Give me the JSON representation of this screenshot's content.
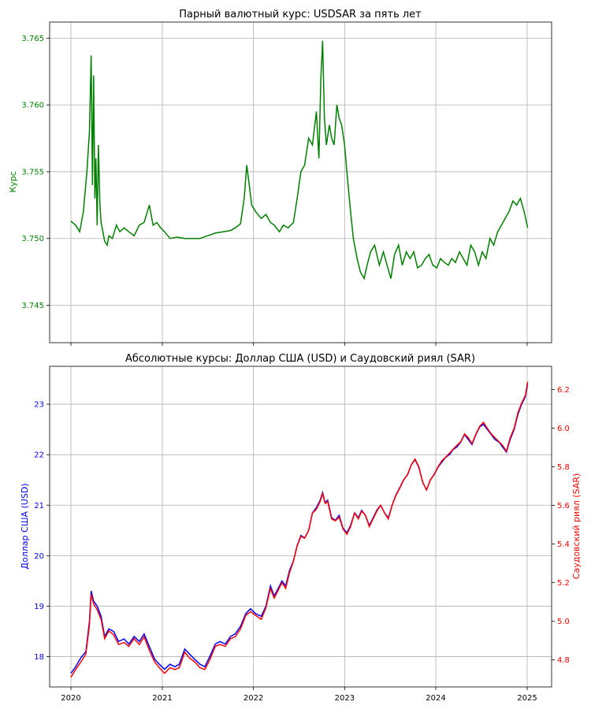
{
  "chart_data": [
    {
      "type": "line",
      "title": "Парный валютный курс: USDSAR за пять лет",
      "ylabel": "Курс",
      "xlabel": "",
      "grid": true,
      "ylim": [
        3.7422,
        3.7662
      ],
      "y_ticks": [
        3.745,
        3.75,
        3.755,
        3.76,
        3.765
      ],
      "y_tick_labels": [
        "3.745",
        "3.750",
        "3.755",
        "3.760",
        "3.765"
      ],
      "x_ticks": [
        "2020",
        "2021",
        "2022",
        "2023",
        "2024",
        "2025"
      ],
      "colors": {
        "series": "#008000",
        "axis_labels": "#008000"
      },
      "series": [
        {
          "x": [
            "2020-01-01",
            "2020-01-20",
            "2020-02-05",
            "2020-02-20",
            "2020-03-05",
            "2020-03-15",
            "2020-03-22",
            "2020-03-27",
            "2020-04-01",
            "2020-04-06",
            "2020-04-10",
            "2020-04-15",
            "2020-04-20",
            "2020-04-26",
            "2020-05-01",
            "2020-05-08",
            "2020-05-15",
            "2020-05-25",
            "2020-06-01",
            "2020-06-15",
            "2020-07-01",
            "2020-07-15",
            "2020-08-01",
            "2020-08-20",
            "2020-09-10",
            "2020-10-01",
            "2020-10-20",
            "2020-11-10",
            "2020-11-25",
            "2020-12-10",
            "2020-12-25",
            "2021-01-10",
            "2021-02-01",
            "2021-03-01",
            "2021-04-01",
            "2021-05-01",
            "2021-06-01",
            "2021-07-01",
            "2021-08-01",
            "2021-09-01",
            "2021-10-01",
            "2021-10-20",
            "2021-11-10",
            "2021-11-25",
            "2021-12-05",
            "2021-12-15",
            "2021-12-25",
            "2022-01-10",
            "2022-02-01",
            "2022-02-20",
            "2022-03-10",
            "2022-03-25",
            "2022-04-15",
            "2022-05-01",
            "2022-05-20",
            "2022-06-10",
            "2022-06-25",
            "2022-07-10",
            "2022-07-25",
            "2022-08-10",
            "2022-08-25",
            "2022-09-10",
            "2022-09-20",
            "2022-09-28",
            "2022-10-05",
            "2022-10-12",
            "2022-10-20",
            "2022-11-01",
            "2022-11-10",
            "2022-11-20",
            "2022-12-01",
            "2022-12-10",
            "2022-12-20",
            "2023-01-01",
            "2023-01-10",
            "2023-01-25",
            "2023-02-05",
            "2023-02-20",
            "2023-03-05",
            "2023-03-20",
            "2023-04-01",
            "2023-04-15",
            "2023-05-01",
            "2023-05-20",
            "2023-06-05",
            "2023-06-20",
            "2023-07-05",
            "2023-07-20",
            "2023-08-05",
            "2023-08-20",
            "2023-09-05",
            "2023-09-20",
            "2023-10-05",
            "2023-10-20",
            "2023-11-05",
            "2023-11-20",
            "2023-12-05",
            "2023-12-20",
            "2024-01-05",
            "2024-01-20",
            "2024-02-05",
            "2024-02-20",
            "2024-03-05",
            "2024-03-20",
            "2024-04-05",
            "2024-04-20",
            "2024-05-05",
            "2024-05-20",
            "2024-06-05",
            "2024-06-20",
            "2024-07-05",
            "2024-07-20",
            "2024-08-05",
            "2024-08-20",
            "2024-09-05",
            "2024-09-20",
            "2024-10-05",
            "2024-10-20",
            "2024-11-05",
            "2024-11-20",
            "2024-12-05",
            "2024-12-20",
            "2025-01-03"
          ],
          "values": [
            3.7513,
            3.751,
            3.7505,
            3.752,
            3.755,
            3.758,
            3.7637,
            3.754,
            3.7622,
            3.753,
            3.756,
            3.751,
            3.757,
            3.7525,
            3.7512,
            3.7505,
            3.7498,
            3.7495,
            3.7502,
            3.75,
            3.751,
            3.7505,
            3.7508,
            3.7505,
            3.7502,
            3.751,
            3.7512,
            3.7525,
            3.751,
            3.7512,
            3.7508,
            3.7505,
            3.75,
            3.7501,
            3.75,
            3.75,
            3.75,
            3.7502,
            3.7504,
            3.7505,
            3.7506,
            3.7508,
            3.7511,
            3.753,
            3.7555,
            3.754,
            3.7525,
            3.752,
            3.7515,
            3.7518,
            3.7512,
            3.751,
            3.7505,
            3.751,
            3.7508,
            3.7512,
            3.753,
            3.755,
            3.7555,
            3.7575,
            3.757,
            3.7595,
            3.756,
            3.762,
            3.7648,
            3.759,
            3.757,
            3.7585,
            3.7575,
            3.757,
            3.76,
            3.759,
            3.7585,
            3.757,
            3.755,
            3.752,
            3.75,
            3.7485,
            3.7475,
            3.747,
            3.748,
            3.749,
            3.7495,
            3.748,
            3.749,
            3.748,
            3.747,
            3.7488,
            3.7495,
            3.748,
            3.749,
            3.7485,
            3.749,
            3.7478,
            3.748,
            3.7485,
            3.7488,
            3.748,
            3.7478,
            3.7485,
            3.7482,
            3.748,
            3.7485,
            3.7482,
            3.749,
            3.7485,
            3.748,
            3.7495,
            3.749,
            3.748,
            3.749,
            3.7485,
            3.75,
            3.7495,
            3.7505,
            3.751,
            3.7515,
            3.752,
            3.7528,
            3.7525,
            3.753,
            3.752,
            3.7508
          ]
        }
      ]
    },
    {
      "type": "line",
      "title": "Абсолютные курсы: Доллар США (USD) и Саудовский риял (SAR)",
      "xlabel": "",
      "ylabel": "Доллар США (USD)",
      "y2label": "Саудовский риял (SAR)",
      "grid": true,
      "ylim": [
        17.4,
        23.75
      ],
      "y2lim": [
        4.66,
        6.32
      ],
      "y_ticks": [
        18,
        19,
        20,
        21,
        22,
        23
      ],
      "y_tick_labels": [
        "18",
        "19",
        "20",
        "21",
        "22",
        "23"
      ],
      "y2_ticks": [
        4.8,
        5.0,
        5.2,
        5.4,
        5.6,
        5.8,
        6.0,
        6.2
      ],
      "y2_tick_labels": [
        "4.8",
        "5.0",
        "5.2",
        "5.4",
        "5.6",
        "5.8",
        "6.0",
        "6.2"
      ],
      "x_ticks": [
        "2020",
        "2021",
        "2022",
        "2023",
        "2024",
        "2025"
      ],
      "colors": {
        "usd": "#0000ff",
        "sar": "#ff0000"
      },
      "x": [
        "2020-01-01",
        "2020-01-20",
        "2020-02-10",
        "2020-03-01",
        "2020-03-15",
        "2020-03-22",
        "2020-04-01",
        "2020-04-15",
        "2020-05-01",
        "2020-05-15",
        "2020-06-01",
        "2020-06-20",
        "2020-07-10",
        "2020-08-01",
        "2020-08-20",
        "2020-09-10",
        "2020-10-01",
        "2020-10-20",
        "2020-11-10",
        "2020-12-01",
        "2020-12-20",
        "2021-01-10",
        "2021-02-01",
        "2021-02-20",
        "2021-03-10",
        "2021-04-01",
        "2021-04-20",
        "2021-05-10",
        "2021-06-01",
        "2021-06-20",
        "2021-07-10",
        "2021-08-01",
        "2021-08-20",
        "2021-09-10",
        "2021-10-01",
        "2021-10-20",
        "2021-11-10",
        "2021-12-01",
        "2021-12-20",
        "2022-01-10",
        "2022-02-01",
        "2022-02-20",
        "2022-03-10",
        "2022-03-25",
        "2022-04-10",
        "2022-04-25",
        "2022-05-10",
        "2022-05-25",
        "2022-06-10",
        "2022-06-25",
        "2022-07-10",
        "2022-07-25",
        "2022-08-10",
        "2022-08-25",
        "2022-09-10",
        "2022-09-25",
        "2022-10-05",
        "2022-10-15",
        "2022-10-25",
        "2022-11-10",
        "2022-11-25",
        "2022-12-10",
        "2022-12-25",
        "2023-01-10",
        "2023-01-25",
        "2023-02-10",
        "2023-02-25",
        "2023-03-10",
        "2023-03-25",
        "2023-04-10",
        "2023-04-25",
        "2023-05-10",
        "2023-05-25",
        "2023-06-10",
        "2023-06-25",
        "2023-07-10",
        "2023-07-25",
        "2023-08-10",
        "2023-08-25",
        "2023-09-10",
        "2023-09-25",
        "2023-10-10",
        "2023-10-25",
        "2023-11-10",
        "2023-11-25",
        "2023-12-10",
        "2023-12-25",
        "2024-01-10",
        "2024-01-25",
        "2024-02-10",
        "2024-02-25",
        "2024-03-10",
        "2024-03-25",
        "2024-04-10",
        "2024-04-25",
        "2024-05-10",
        "2024-05-25",
        "2024-06-10",
        "2024-06-25",
        "2024-07-10",
        "2024-07-25",
        "2024-08-10",
        "2024-08-25",
        "2024-09-10",
        "2024-09-25",
        "2024-10-10",
        "2024-10-25",
        "2024-11-10",
        "2024-11-25",
        "2024-12-10",
        "2024-12-25",
        "2025-01-03"
      ],
      "series": [
        {
          "name": "Доллар США (USD)",
          "axis": "left",
          "values": [
            17.67,
            17.8,
            17.98,
            18.1,
            18.7,
            19.3,
            19.1,
            19.0,
            18.8,
            18.4,
            18.55,
            18.5,
            18.3,
            18.35,
            18.25,
            18.4,
            18.3,
            18.45,
            18.2,
            17.95,
            17.85,
            17.75,
            17.85,
            17.8,
            17.85,
            18.15,
            18.05,
            17.95,
            17.85,
            17.8,
            18.0,
            18.25,
            18.3,
            18.25,
            18.4,
            18.45,
            18.6,
            18.85,
            18.95,
            18.85,
            18.8,
            19.0,
            19.4,
            19.2,
            19.35,
            19.5,
            19.4,
            19.7,
            19.9,
            20.2,
            20.4,
            20.35,
            20.5,
            20.85,
            20.95,
            21.1,
            21.25,
            21.05,
            21.1,
            20.75,
            20.7,
            20.8,
            20.55,
            20.45,
            20.6,
            20.85,
            20.75,
            20.9,
            20.8,
            20.6,
            20.75,
            20.9,
            21.0,
            20.85,
            20.75,
            21.0,
            21.2,
            21.35,
            21.5,
            21.6,
            21.8,
            21.9,
            21.75,
            21.45,
            21.3,
            21.5,
            21.6,
            21.75,
            21.85,
            21.95,
            22.0,
            22.1,
            22.15,
            22.25,
            22.4,
            22.3,
            22.2,
            22.4,
            22.55,
            22.6,
            22.5,
            22.4,
            22.3,
            22.25,
            22.15,
            22.05,
            22.3,
            22.5,
            22.8,
            23.0,
            23.15,
            23.4
          ]
        },
        {
          "name": "Саудовский риял (SAR)",
          "axis": "right",
          "values": [
            4.71,
            4.75,
            4.79,
            4.83,
            4.98,
            5.14,
            5.09,
            5.06,
            5.01,
            4.91,
            4.95,
            4.93,
            4.88,
            4.89,
            4.87,
            4.91,
            4.88,
            4.92,
            4.85,
            4.79,
            4.76,
            4.73,
            4.76,
            4.75,
            4.76,
            4.84,
            4.81,
            4.79,
            4.76,
            4.75,
            4.8,
            4.87,
            4.88,
            4.87,
            4.91,
            4.92,
            4.96,
            5.03,
            5.05,
            5.03,
            5.01,
            5.07,
            5.17,
            5.12,
            5.16,
            5.2,
            5.17,
            5.25,
            5.31,
            5.39,
            5.44,
            5.43,
            5.47,
            5.56,
            5.58,
            5.62,
            5.66,
            5.61,
            5.62,
            5.53,
            5.52,
            5.54,
            5.48,
            5.45,
            5.49,
            5.56,
            5.53,
            5.57,
            5.55,
            5.49,
            5.53,
            5.57,
            5.6,
            5.56,
            5.53,
            5.6,
            5.65,
            5.69,
            5.73,
            5.76,
            5.81,
            5.84,
            5.8,
            5.72,
            5.68,
            5.73,
            5.76,
            5.8,
            5.83,
            5.85,
            5.87,
            5.89,
            5.91,
            5.93,
            5.97,
            5.95,
            5.92,
            5.97,
            6.01,
            6.03,
            6.0,
            5.97,
            5.95,
            5.93,
            5.91,
            5.88,
            5.95,
            6.0,
            6.08,
            6.13,
            6.17,
            6.24
          ]
        }
      ]
    }
  ]
}
